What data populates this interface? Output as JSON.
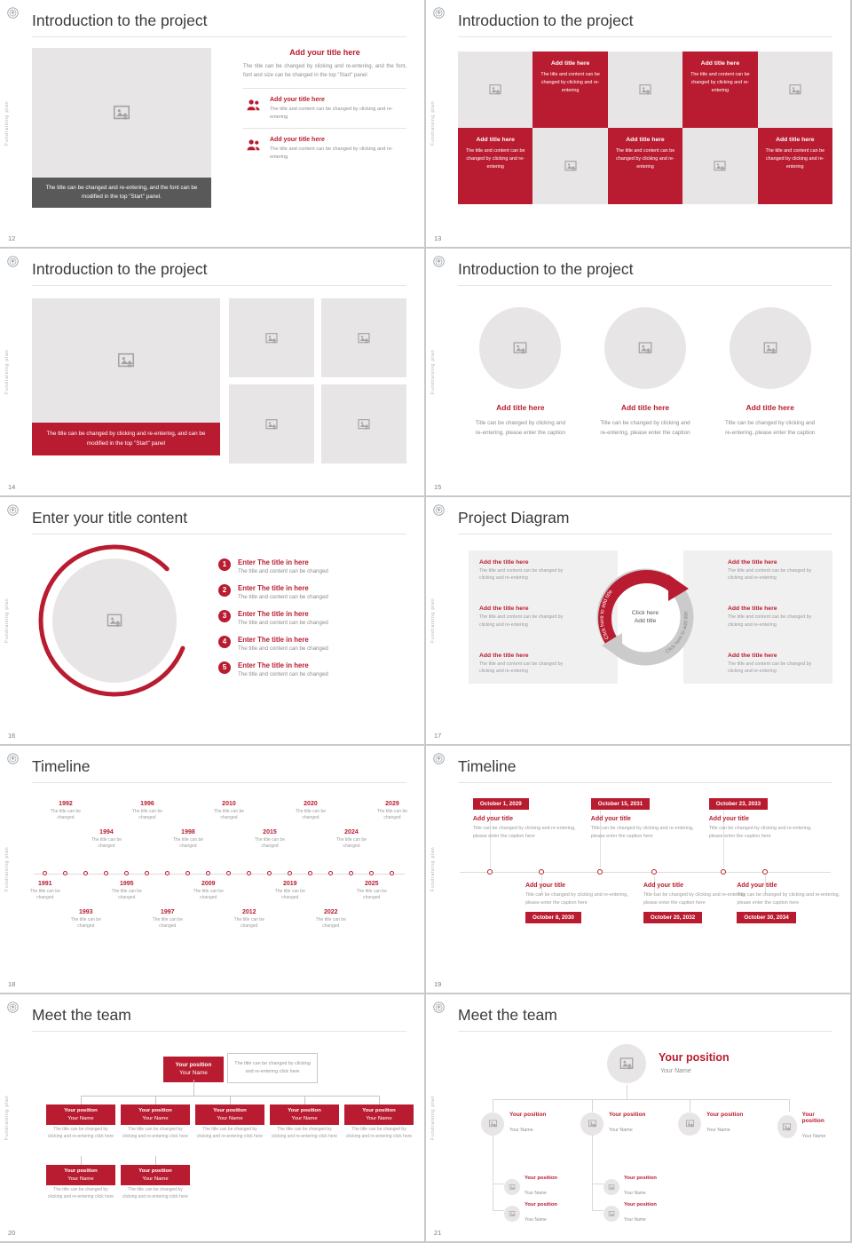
{
  "theme": {
    "accent": "#b91c30",
    "dark_bar": "#595959",
    "placeholder_gray": "#e7e5e5"
  },
  "brand": {
    "vertical_label": "Fundraising plan"
  },
  "slides": {
    "s12": {
      "number": "12",
      "title": "Introduction to the project",
      "image_caption": "The title can be changed and re-entering, and the font can be modified in the top \"Start\" panel.",
      "heading": "Add your title here",
      "heading_body": "The title can be changed by clicking and re-entering, and the font, font and size can be changed in the top \"Start\" panel",
      "items": [
        {
          "title": "Add your title here",
          "body": "The title and content can be changed by clicking and re-entering"
        },
        {
          "title": "Add your title here",
          "body": "The title and content can be changed by clicking and re-entering"
        }
      ]
    },
    "s13": {
      "number": "13",
      "title": "Introduction to the project",
      "red_cells": [
        {
          "title": "Add title here",
          "body": "The title and content can be changed by clicking and re-entering"
        },
        {
          "title": "Add title here",
          "body": "The title and content can be changed by clicking and re-entering"
        },
        {
          "title": "Add title here",
          "body": "The title and content can be changed by clicking and re-entering"
        },
        {
          "title": "Add title here",
          "body": "The title and content can be changed by clicking and re-entering"
        },
        {
          "title": "Add title here",
          "body": "The title and content can be changed by clicking and re-entering"
        }
      ]
    },
    "s14": {
      "number": "14",
      "title": "Introduction to the project",
      "image_caption": "The title can be changed by clicking and re-entering, and can be modified in the top \"Start\" panel"
    },
    "s15": {
      "number": "15",
      "title": "Introduction to the project",
      "cols": [
        {
          "title": "Add title here",
          "body": "Title can be changed by clicking and re-entering, please enter the caption"
        },
        {
          "title": "Add title here",
          "body": "Title can be changed by clicking and re-entering, please enter the caption"
        },
        {
          "title": "Add title here",
          "body": "Title can be changed by clicking and re-entering, please enter the caption"
        }
      ]
    },
    "s16": {
      "number": "16",
      "title": "Enter your title content",
      "items": [
        {
          "num": "1",
          "title": "Enter The title in here",
          "body": "The title and content can be changed"
        },
        {
          "num": "2",
          "title": "Enter The title in here",
          "body": "The title and content can be changed"
        },
        {
          "num": "3",
          "title": "Enter The title in here",
          "body": "The title and content can be changed"
        },
        {
          "num": "4",
          "title": "Enter The title in here",
          "body": "The title and content can be changed"
        },
        {
          "num": "5",
          "title": "Enter The title in here",
          "body": "The title and content can be changed"
        }
      ]
    },
    "s17": {
      "number": "17",
      "title": "Project Diagram",
      "center_top": "Click here",
      "center_bottom": "Add title",
      "arc_label": "Click here to add title",
      "left_items": [
        {
          "title": "Add the title here",
          "body": "The title and content can be changed by clicking and re-entering"
        },
        {
          "title": "Add the title here",
          "body": "The title and content can be changed by clicking and re-entering"
        },
        {
          "title": "Add the title here",
          "body": "The title and content can be changed by clicking and re-entering"
        }
      ],
      "right_items": [
        {
          "title": "Add the title here",
          "body": "The title and content can be changed by clicking and re-entering"
        },
        {
          "title": "Add the title here",
          "body": "The title and content can be changed by clicking and re-entering"
        },
        {
          "title": "Add the title here",
          "body": "The title and content can be changed by clicking and re-entering"
        }
      ]
    },
    "s18": {
      "number": "18",
      "title": "Timeline",
      "caption": "The title can be changed",
      "years": [
        "1991",
        "1992",
        "1993",
        "1994",
        "1995",
        "1996",
        "1997",
        "1998",
        "2009",
        "2010",
        "2012",
        "2015",
        "2019",
        "2020",
        "2022",
        "2024",
        "2025",
        "2029"
      ]
    },
    "s19": {
      "number": "19",
      "title": "Timeline",
      "top_items": [
        {
          "date": "October 1, 2029",
          "title": "Add your title",
          "body": "Title can be changed by clicking and re-entering, please enter the caption here"
        },
        {
          "date": "October 15, 2031",
          "title": "Add your title",
          "body": "Title can be changed by clicking and re-entering, please enter the caption here"
        },
        {
          "date": "October 23, 2033",
          "title": "Add your title",
          "body": "Title can be changed by clicking and re-entering, please enter the caption here"
        }
      ],
      "bottom_items": [
        {
          "date": "October 8, 2030",
          "title": "Add your title",
          "body": "Title can be changed by clicking and re-entering, please enter the caption here"
        },
        {
          "date": "October 20, 2032",
          "title": "Add your title",
          "body": "Title can be changed by clicking and re-entering, please enter the caption here"
        },
        {
          "date": "October 30, 2034",
          "title": "Add your title",
          "body": "Title can be changed by clicking and re-entering, please enter the caption here"
        }
      ]
    },
    "s20": {
      "number": "20",
      "title": "Meet the team",
      "root": {
        "position": "Your position",
        "name": "Your Name"
      },
      "note": "The title can be changed by clicking and re-entering click here",
      "boxes": [
        {
          "position": "Your position",
          "name": "Your Name",
          "caption": "The title can be changed by clicking and re-entering click here"
        },
        {
          "position": "Your position",
          "name": "Your Name",
          "caption": "The title can be changed by clicking and re-entering click here"
        },
        {
          "position": "Your position",
          "name": "Your Name",
          "caption": "The title can be changed by clicking and re-entering click here"
        },
        {
          "position": "Your position",
          "name": "Your Name",
          "caption": "The title can be changed by clicking and re-entering click here"
        },
        {
          "position": "Your position",
          "name": "Your Name",
          "caption": "The title can be changed by clicking and re-entering click here"
        }
      ],
      "extra_boxes": [
        {
          "position": "Your position",
          "name": "Your Name",
          "caption": "The title can be changed by clicking and re-entering click here"
        },
        {
          "position": "Your position",
          "name": "Your Name",
          "caption": "The title can be changed by clicking and re-entering click here"
        }
      ]
    },
    "s21": {
      "number": "21",
      "title": "Meet the team",
      "lead": {
        "position": "Your position",
        "name": "Your Name"
      },
      "branches": [
        {
          "position": "Your position",
          "name": "Your Name"
        },
        {
          "position": "Your position",
          "name": "Your Name"
        },
        {
          "position": "Your position",
          "name": "Your Name"
        },
        {
          "position": "Your position",
          "name": "Your Name"
        }
      ],
      "subs": [
        {
          "position": "Your position",
          "name": "Your Name"
        },
        {
          "position": "Your position",
          "name": "Your Name"
        },
        {
          "position": "Your position",
          "name": "Your Name"
        },
        {
          "position": "Your position",
          "name": "Your Name"
        }
      ]
    }
  }
}
